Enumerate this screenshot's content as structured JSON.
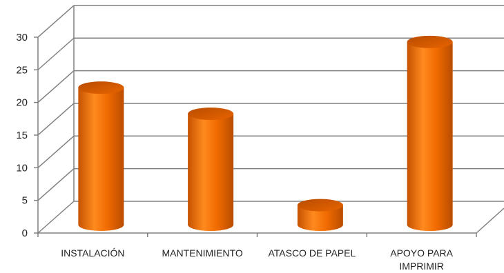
{
  "chart_data": {
    "type": "bar",
    "style": "3d-cylinder",
    "categories": [
      [
        "INSTALACIÓN"
      ],
      [
        "MANTENIMIENTO"
      ],
      [
        "ATASCO DE PAPEL"
      ],
      [
        "APOYO PARA",
        "IMPRIMIR"
      ]
    ],
    "values": [
      21,
      17,
      3,
      28
    ],
    "ylim": [
      0,
      30
    ],
    "yticks": [
      "0",
      "5",
      "10",
      "15",
      "20",
      "25",
      "30"
    ],
    "grid": true,
    "legend": "none",
    "colors": {
      "bar_light": "#ff8a1f",
      "bar_mid": "#f06a00",
      "bar_dark": "#b84c00",
      "grid": "#808080"
    }
  }
}
